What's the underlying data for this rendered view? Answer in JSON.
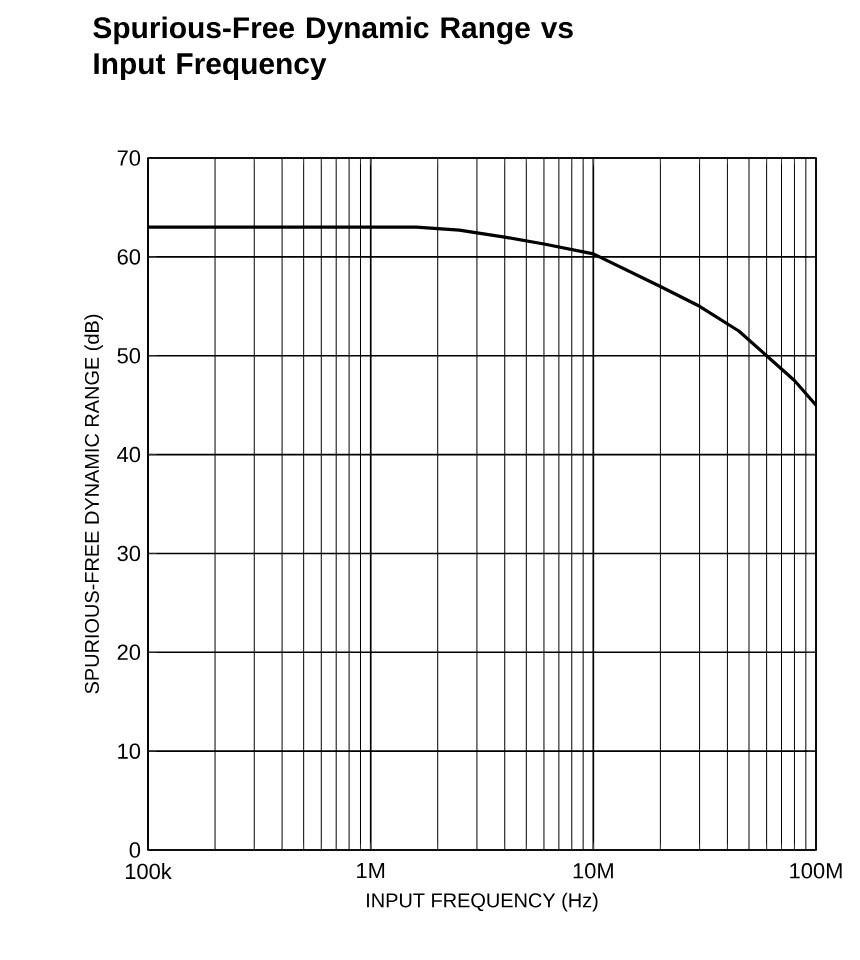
{
  "chart_data": {
    "type": "line",
    "title": "Spurious-Free Dynamic Range vs Input Frequency",
    "xlabel": "INPUT FREQUENCY (Hz)",
    "ylabel": "SPURIOUS-FREE DYNAMIC RANGE (dB)",
    "series": [
      {
        "color": "#000000",
        "x": [
          100000,
          400000,
          1000000,
          1600000,
          2500000,
          4000000,
          6000000,
          10000000,
          20000000,
          30000000,
          45000000,
          60000000,
          80000000,
          100000000
        ],
        "values": [
          63,
          63,
          63,
          63,
          62.7,
          62,
          61.3,
          60.3,
          57,
          55,
          52.5,
          50,
          47.5,
          45
        ]
      }
    ],
    "xlim": [
      100000,
      100000000
    ],
    "ylim": [
      0,
      70
    ],
    "xticks": [
      {
        "value": 100000,
        "label": "100k"
      },
      {
        "value": 1000000,
        "label": "1M"
      },
      {
        "value": 10000000,
        "label": "10M"
      },
      {
        "value": 100000000,
        "label": "100M"
      }
    ],
    "yticks": [
      0,
      10,
      20,
      30,
      40,
      50,
      60,
      70
    ],
    "log": "x",
    "grid": true,
    "marker": "none",
    "line_style": "solid"
  }
}
